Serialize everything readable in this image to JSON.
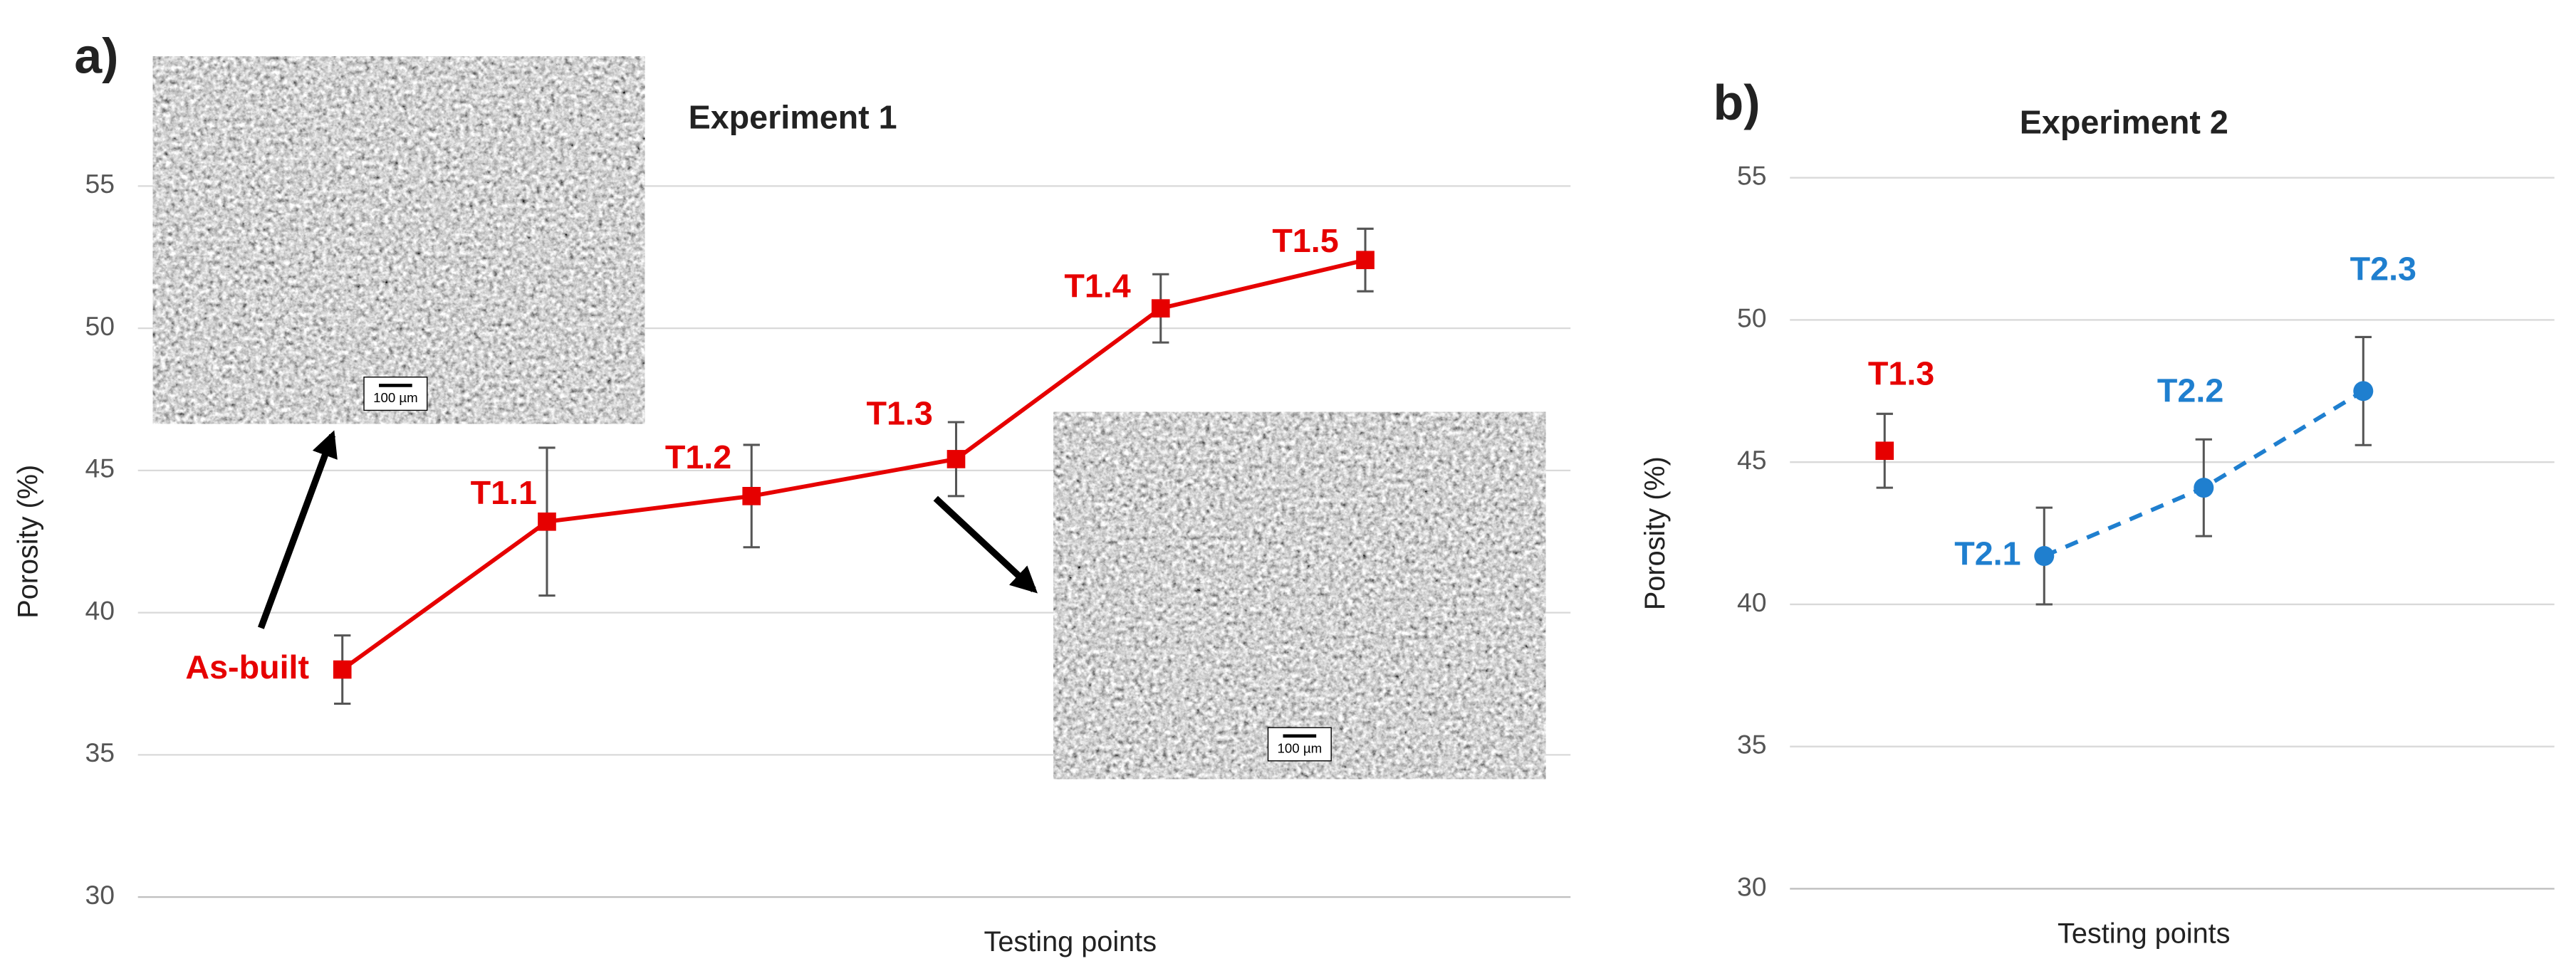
{
  "chart_data": [
    {
      "type": "line",
      "panel_label": "a)",
      "title": "Experiment 1",
      "ylabel": "Porosity (%)",
      "xlabel": "Testing points",
      "categories": [
        "As-built",
        "T1.1",
        "T1.2",
        "T1.3",
        "T1.4",
        "T1.5"
      ],
      "ylim": [
        30,
        55
      ],
      "yticks": [
        30,
        35,
        40,
        45,
        50,
        55
      ],
      "grid": true,
      "series": [
        {
          "color": "#e60000",
          "marker": "square",
          "line_style": "solid",
          "values": [
            38.0,
            43.2,
            44.1,
            45.4,
            50.7,
            52.4
          ],
          "errors": [
            1.2,
            2.6,
            1.8,
            1.3,
            1.2,
            1.1
          ]
        }
      ],
      "insets": [
        {
          "scale_label": "100 µm"
        },
        {
          "scale_label": "100 µm"
        }
      ]
    },
    {
      "type": "line",
      "panel_label": "b)",
      "title": "Experiment 2",
      "ylabel": "Porosity (%)",
      "xlabel": "Testing points",
      "categories": [
        "T1.3",
        "T2.1",
        "T2.2",
        "T2.3"
      ],
      "ylim": [
        30,
        55
      ],
      "yticks": [
        30,
        35,
        40,
        45,
        50,
        55
      ],
      "grid": true,
      "series": [
        {
          "color": "#e60000",
          "marker": "square",
          "line_style": "none",
          "values": [
            45.4,
            null,
            null,
            null
          ],
          "errors": [
            1.3,
            null,
            null,
            null
          ]
        },
        {
          "color": "#1f7fcf",
          "marker": "circle",
          "line_style": "dashed",
          "values": [
            null,
            41.7,
            44.1,
            47.5
          ],
          "errors": [
            null,
            1.7,
            1.7,
            1.9
          ]
        }
      ]
    }
  ]
}
